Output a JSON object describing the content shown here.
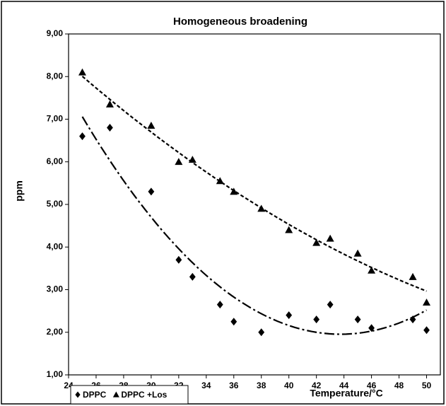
{
  "chart_data": {
    "type": "scatter",
    "title": "Homogeneous broadening",
    "x_label": "Temperature/°C",
    "y_label": "ppm",
    "xlim": [
      24,
      51
    ],
    "xticks": [
      24,
      26,
      28,
      30,
      32,
      34,
      36,
      38,
      40,
      42,
      44,
      46,
      48,
      50
    ],
    "ylim": [
      1,
      9
    ],
    "yticks": [
      {
        "value": 1,
        "label": "1,00"
      },
      {
        "value": 2,
        "label": "2,00"
      },
      {
        "value": 3,
        "label": "3,00"
      },
      {
        "value": 4,
        "label": "4,00"
      },
      {
        "value": 5,
        "label": "5,00"
      },
      {
        "value": 6,
        "label": "6,00"
      },
      {
        "value": 7,
        "label": "7,00"
      },
      {
        "value": 8,
        "label": "8,00"
      },
      {
        "value": 9,
        "label": "9,00"
      }
    ],
    "trendline_order": 2,
    "legend": "bottom-left",
    "series": [
      {
        "name": "DPPC",
        "color": "#000000",
        "marker": "diamond",
        "x": [
          25,
          27,
          30,
          32,
          33,
          35,
          36,
          38,
          40,
          42,
          43,
          45,
          46,
          49,
          50
        ],
        "values": [
          6.6,
          6.8,
          5.3,
          3.7,
          3.3,
          2.65,
          2.25,
          2.0,
          2.4,
          2.3,
          2.65,
          2.3,
          2.1,
          2.3,
          2.05
        ]
      },
      {
        "name": "DPPC +Los",
        "color": "#000000",
        "marker": "triangle",
        "x": [
          25,
          27,
          30,
          32,
          33,
          35,
          36,
          38,
          40,
          42,
          43,
          45,
          46,
          49,
          50
        ],
        "values": [
          8.1,
          7.35,
          6.85,
          6.0,
          6.05,
          5.55,
          5.3,
          4.9,
          4.4,
          4.1,
          4.2,
          3.85,
          3.45,
          3.3,
          2.7
        ]
      }
    ]
  }
}
